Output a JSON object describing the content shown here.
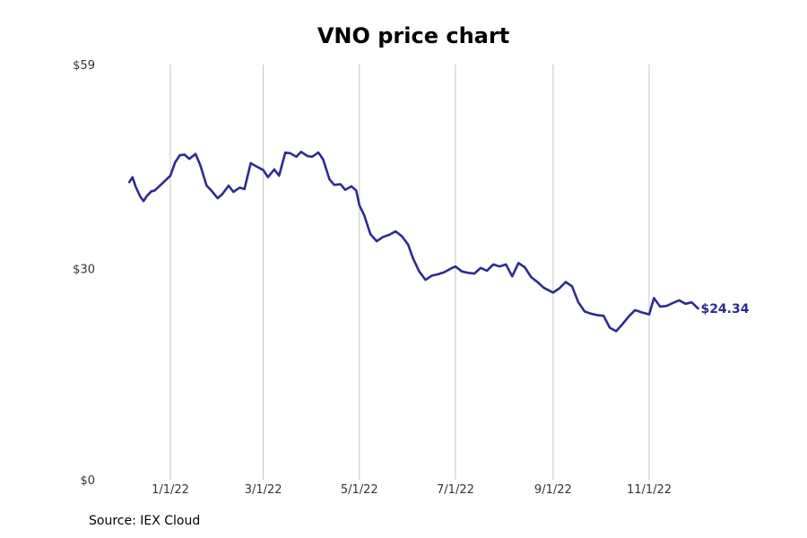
{
  "chart_data": {
    "type": "line",
    "title": "VNO price chart",
    "source": "Source: IEX Cloud",
    "y_ticks": [
      {
        "value": 0,
        "label": "$0"
      },
      {
        "value": 30,
        "label": "$30"
      },
      {
        "value": 59,
        "label": "$59"
      }
    ],
    "ylim": [
      0,
      59
    ],
    "x_ticks": [
      {
        "date": "2022-01-01",
        "label": "1/1/22"
      },
      {
        "date": "2022-03-01",
        "label": "3/1/22"
      },
      {
        "date": "2022-05-01",
        "label": "5/1/22"
      },
      {
        "date": "2022-07-01",
        "label": "7/1/22"
      },
      {
        "date": "2022-09-01",
        "label": "9/1/22"
      },
      {
        "date": "2022-11-01",
        "label": "11/1/22"
      }
    ],
    "xlim": [
      "2021-12-06",
      "2023-01-11"
    ],
    "grid": "vertical",
    "line_color": "#2e2b8f",
    "last_value_label": "$24.34",
    "series": [
      {
        "x": [
          "2021-12-06",
          "2021-12-08",
          "2021-12-10",
          "2021-12-13",
          "2021-12-15",
          "2021-12-17",
          "2021-12-20",
          "2021-12-22",
          "2021-12-24",
          "2022-01-01",
          "2022-01-04",
          "2022-01-07",
          "2022-01-10",
          "2022-01-13",
          "2022-01-17",
          "2022-01-20",
          "2022-01-24",
          "2022-01-27",
          "2022-01-31",
          "2022-02-03",
          "2022-02-07",
          "2022-02-10",
          "2022-02-14",
          "2022-02-17",
          "2022-02-21",
          "2022-02-24",
          "2022-03-01",
          "2022-03-04",
          "2022-03-08",
          "2022-03-11",
          "2022-03-15",
          "2022-03-18",
          "2022-03-22",
          "2022-03-25",
          "2022-03-29",
          "2022-04-01",
          "2022-04-05",
          "2022-04-08",
          "2022-04-12",
          "2022-04-15",
          "2022-04-19",
          "2022-04-22",
          "2022-04-26",
          "2022-04-29",
          "2022-05-01",
          "2022-05-04",
          "2022-05-08",
          "2022-05-12",
          "2022-05-16",
          "2022-05-20",
          "2022-05-24",
          "2022-05-28",
          "2022-06-01",
          "2022-06-04",
          "2022-06-08",
          "2022-06-12",
          "2022-06-16",
          "2022-06-20",
          "2022-06-24",
          "2022-06-28",
          "2022-07-01",
          "2022-07-05",
          "2022-07-09",
          "2022-07-13",
          "2022-07-17",
          "2022-07-21",
          "2022-07-25",
          "2022-07-29",
          "2022-08-02",
          "2022-08-06",
          "2022-08-10",
          "2022-08-14",
          "2022-08-18",
          "2022-08-22",
          "2022-08-26",
          "2022-09-01",
          "2022-09-05",
          "2022-09-09",
          "2022-09-13",
          "2022-09-17",
          "2022-09-21",
          "2022-09-25",
          "2022-09-29",
          "2022-10-03",
          "2022-10-07",
          "2022-10-11",
          "2022-10-15",
          "2022-10-19",
          "2022-10-23",
          "2022-10-27",
          "2022-11-01",
          "2022-11-04",
          "2022-11-08",
          "2022-11-12",
          "2022-11-16",
          "2022-11-20",
          "2022-11-24",
          "2022-11-28",
          "2022-12-02"
        ],
        "y": [
          42.3,
          43.0,
          41.6,
          40.2,
          39.6,
          40.3,
          41.0,
          41.1,
          41.5,
          43.2,
          45.1,
          46.1,
          46.2,
          45.6,
          46.3,
          44.7,
          41.8,
          41.1,
          40.0,
          40.6,
          41.8,
          40.9,
          41.5,
          41.3,
          45.0,
          44.6,
          44.0,
          43.0,
          44.1,
          43.2,
          46.5,
          46.4,
          45.9,
          46.6,
          46.0,
          45.9,
          46.5,
          45.5,
          42.7,
          41.9,
          42.0,
          41.2,
          41.7,
          41.1,
          39.0,
          37.6,
          34.9,
          33.9,
          34.5,
          34.8,
          35.3,
          34.6,
          33.4,
          31.5,
          29.6,
          28.4,
          29.0,
          29.2,
          29.5,
          30.0,
          30.3,
          29.6,
          29.4,
          29.3,
          30.1,
          29.7,
          30.6,
          30.3,
          30.6,
          28.9,
          30.8,
          30.2,
          28.8,
          28.1,
          27.3,
          26.6,
          27.2,
          28.1,
          27.5,
          25.2,
          23.9,
          23.6,
          23.4,
          23.3,
          21.6,
          21.1,
          22.1,
          23.2,
          24.1,
          23.8,
          23.5,
          25.8,
          24.6,
          24.7,
          25.1,
          25.5,
          25.0,
          25.2,
          24.34
        ]
      }
    ]
  }
}
